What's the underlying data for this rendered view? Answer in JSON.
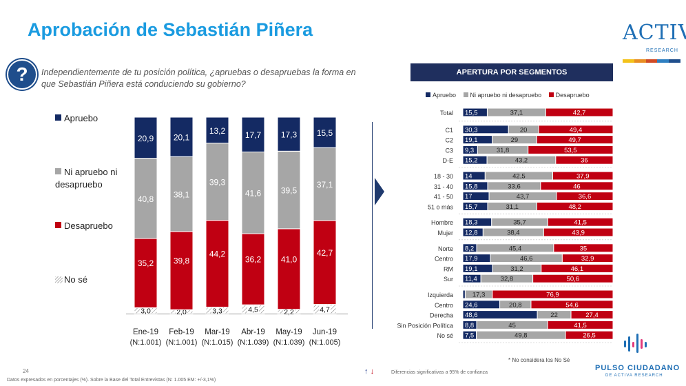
{
  "title": "Aprobación de Sebastián Piñera",
  "question_icon": "question-icon",
  "question": "Independientemente de tu posición política, ¿apruebas o desapruebas la forma en que Sebastián Piñera está conduciendo su gobierno?",
  "logo": {
    "text": "ACTIVA",
    "sub": "RESEARCH"
  },
  "colors": {
    "apruebo": "#142a63",
    "ni": "#a6a6a6",
    "desaprueba": "#c00012",
    "nose": "#ffffff",
    "accent": "#1a9be0",
    "strip": [
      "#f3c21a",
      "#e88e23",
      "#d04a25",
      "#2e7fc1",
      "#1f4e8c"
    ]
  },
  "legend": {
    "apruebo": "Apruebo",
    "ni_line1": "Ni apruebo ni",
    "ni_line2": "desapruebo",
    "desapruebo": "Desapruebo",
    "nose": "No sé"
  },
  "chart_data": [
    {
      "type": "bar",
      "stacked": true,
      "categories": [
        "Ene-19",
        "Feb-19",
        "Mar-19",
        "Abr-19",
        "May-19",
        "Jun-19"
      ],
      "category_sublabels": [
        "(N:1.001)",
        "(N:1.001)",
        "(N:1.015)",
        "(N:1.039)",
        "(N:1.039)",
        "(N:1.005)"
      ],
      "series": [
        {
          "name": "No sé",
          "values": [
            3.0,
            2.0,
            3.3,
            4.5,
            2.2,
            4.7
          ],
          "labels": [
            "3,0",
            "2,0",
            "3,3",
            "4,5",
            "2,2",
            "4,7"
          ]
        },
        {
          "name": "Desapruebo",
          "values": [
            35.2,
            39.8,
            44.2,
            36.2,
            41.0,
            42.7
          ],
          "labels": [
            "35,2",
            "39,8",
            "44,2",
            "36,2",
            "41,0",
            "42,7"
          ]
        },
        {
          "name": "Ni apruebo ni desapruebo",
          "values": [
            40.8,
            38.1,
            39.3,
            41.6,
            39.5,
            37.1
          ],
          "labels": [
            "40,8",
            "38,1",
            "39,3",
            "41,6",
            "39,5",
            "37,1"
          ]
        },
        {
          "name": "Apruebo",
          "values": [
            20.9,
            20.1,
            13.2,
            17.7,
            17.3,
            15.5
          ],
          "labels": [
            "20,9",
            "20,1",
            "13,2",
            "17,7",
            "17,3",
            "15,5"
          ]
        }
      ],
      "ylim": [
        0,
        100
      ]
    },
    {
      "type": "bar",
      "orientation": "horizontal",
      "stacked": true,
      "title": "APERTURA POR SEGMENTOS",
      "legend": [
        "Apruebo",
        "Ni apruebo ni desapruebo",
        "Desapruebo"
      ],
      "groups": [
        {
          "rows": [
            {
              "label": "Total",
              "values": [
                15.5,
                37.1,
                42.7
              ],
              "labels": [
                "15,5",
                "37,1",
                "42,7"
              ]
            }
          ]
        },
        {
          "rows": [
            {
              "label": "C1",
              "values": [
                30.3,
                20,
                49.4
              ],
              "labels": [
                "30,3",
                "20",
                "49,4"
              ]
            },
            {
              "label": "C2",
              "values": [
                19.1,
                29,
                49.7
              ],
              "labels": [
                "19,1",
                "29",
                "49,7"
              ]
            },
            {
              "label": "C3",
              "values": [
                9.3,
                31.8,
                53.5
              ],
              "labels": [
                "9,3",
                "31,8",
                "53,5"
              ]
            },
            {
              "label": "D-E",
              "values": [
                15.2,
                43.2,
                36
              ],
              "labels": [
                "15,2",
                "43,2",
                "36"
              ]
            }
          ]
        },
        {
          "rows": [
            {
              "label": "18 - 30",
              "values": [
                14,
                42.5,
                37.9
              ],
              "labels": [
                "14",
                "42,5",
                "37,9"
              ]
            },
            {
              "label": "31 - 40",
              "values": [
                15.8,
                33.6,
                46
              ],
              "labels": [
                "15,8",
                "33,6",
                "46"
              ]
            },
            {
              "label": "41 - 50",
              "values": [
                17,
                43.7,
                36.6
              ],
              "labels": [
                "17",
                "43,7",
                "36,6"
              ]
            },
            {
              "label": "51 o más",
              "values": [
                15.7,
                31.1,
                48.2
              ],
              "labels": [
                "15,7",
                "31,1",
                "48,2"
              ]
            }
          ]
        },
        {
          "rows": [
            {
              "label": "Hombre",
              "values": [
                18.3,
                35.7,
                41.5
              ],
              "labels": [
                "18,3",
                "35,7",
                "41,5"
              ]
            },
            {
              "label": "Mujer",
              "values": [
                12.8,
                38.4,
                43.9
              ],
              "labels": [
                "12,8",
                "38,4",
                "43,9"
              ]
            }
          ]
        },
        {
          "rows": [
            {
              "label": "Norte",
              "values": [
                8.2,
                45.4,
                35
              ],
              "labels": [
                "8,2",
                "45,4",
                "35"
              ]
            },
            {
              "label": "Centro",
              "values": [
                17.9,
                46.6,
                32.9
              ],
              "labels": [
                "17,9",
                "46,6",
                "32,9"
              ]
            },
            {
              "label": "RM",
              "values": [
                19.1,
                31.2,
                46.1
              ],
              "labels": [
                "19,1",
                "31,2",
                "46,1"
              ]
            },
            {
              "label": "Sur",
              "values": [
                11.4,
                32.8,
                50.6
              ],
              "labels": [
                "11,4",
                "32,8",
                "50,6"
              ]
            }
          ]
        },
        {
          "rows": [
            {
              "label": "Izquierda",
              "values": [
                1.5,
                17.3,
                76.9
              ],
              "labels": [
                "1,5",
                "17,3",
                "76,9"
              ]
            },
            {
              "label": "Centro",
              "values": [
                24.6,
                20.8,
                54.6
              ],
              "labels": [
                "24,6",
                "20,8",
                "54,6"
              ]
            },
            {
              "label": "Derecha",
              "values": [
                48.6,
                22,
                27.4
              ],
              "labels": [
                "48,6",
                "22",
                "27,4"
              ]
            },
            {
              "label": "Sin Posición Política",
              "values": [
                8.8,
                45,
                41.5
              ],
              "labels": [
                "8,8",
                "45",
                "41,5"
              ]
            },
            {
              "label": "No sé",
              "values": [
                7.5,
                49.8,
                26.5
              ],
              "labels": [
                "7,5",
                "49,8",
                "26,5"
              ]
            }
          ]
        }
      ],
      "xlim": [
        0,
        100
      ]
    }
  ],
  "note": "* No considera los No Sé",
  "significance": "Diferencias significativas a 95% de confianza",
  "page_number": "24",
  "footnote": "Datos expresados en porcentajes (%). Sobre la Base del Total Entrevistas (N: 1.005 EM: +/-3,1%)",
  "pulso": {
    "title": "PULSO CIUDADANO",
    "sub": "DE ACTIVA RESEARCH"
  }
}
